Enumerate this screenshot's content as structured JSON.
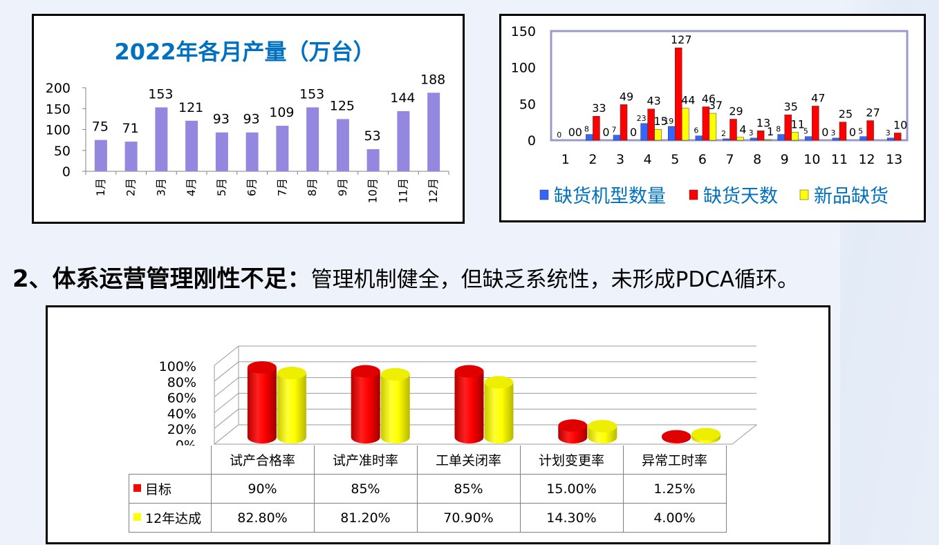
{
  "colors": {
    "bar_purple": "#9487e0",
    "red": "#ff0000",
    "yellow": "#ffff00",
    "blue": "#3366ff",
    "title_blue": "#0070c0",
    "plot_border": "#9999cc"
  },
  "heading": {
    "bold": "2、体系运营管理刚性不足：",
    "rest": "管理机制健全，但缺乏系统性，未形成PDCA循环。"
  },
  "chart_data": [
    {
      "type": "bar",
      "title": "2022年各月产量（万台）",
      "categories": [
        "1月",
        "2月",
        "3月",
        "4月",
        "5月",
        "6月",
        "7月",
        "8月",
        "9月",
        "10月",
        "11月",
        "12月"
      ],
      "values": [
        75,
        71,
        153,
        121,
        93,
        93,
        109,
        153,
        125,
        53,
        144,
        188
      ],
      "ylim": [
        0,
        200
      ],
      "yticks": [
        "0",
        "50",
        "100",
        "150",
        "200"
      ],
      "grid": false
    },
    {
      "type": "bar",
      "categories": [
        "1",
        "2",
        "3",
        "4",
        "5",
        "6",
        "7",
        "8",
        "9",
        "10",
        "11",
        "12",
        "13"
      ],
      "series": [
        {
          "name": "缺货机型数量",
          "values": [
            0,
            8,
            7,
            23,
            19,
            6,
            2,
            3,
            8,
            5,
            3,
            5,
            3
          ]
        },
        {
          "name": "缺货天数",
          "values": [
            0,
            33,
            49,
            43,
            127,
            46,
            29,
            13,
            35,
            47,
            25,
            27,
            10
          ]
        },
        {
          "name": "新品缺货",
          "values": [
            0,
            0,
            0,
            15,
            44,
            37,
            4,
            1,
            11,
            0,
            0,
            null,
            null
          ]
        }
      ],
      "ylim": [
        0,
        150
      ],
      "yticks": [
        "0",
        "50",
        "100",
        "150"
      ],
      "legend_position": "bottom"
    },
    {
      "type": "bar",
      "categories": [
        "试产合格率",
        "试产准时率",
        "工单关闭率",
        "计划变更率",
        "异常工时率"
      ],
      "series": [
        {
          "name": "目标",
          "values": [
            90,
            85,
            85,
            15,
            1.25
          ],
          "labels": [
            "90%",
            "85%",
            "85%",
            "15.00%",
            "1.25%"
          ]
        },
        {
          "name": "12年达成",
          "values": [
            82.8,
            81.2,
            70.9,
            14.3,
            4.0
          ],
          "labels": [
            "82.80%",
            "81.20%",
            "70.90%",
            "14.30%",
            "4.00%"
          ]
        }
      ],
      "ylim": [
        0,
        100
      ],
      "yticks": [
        "0%",
        "20%",
        "40%",
        "60%",
        "80%",
        "100%"
      ],
      "style": "3d-cylinder",
      "legend_position": "data-table"
    }
  ]
}
